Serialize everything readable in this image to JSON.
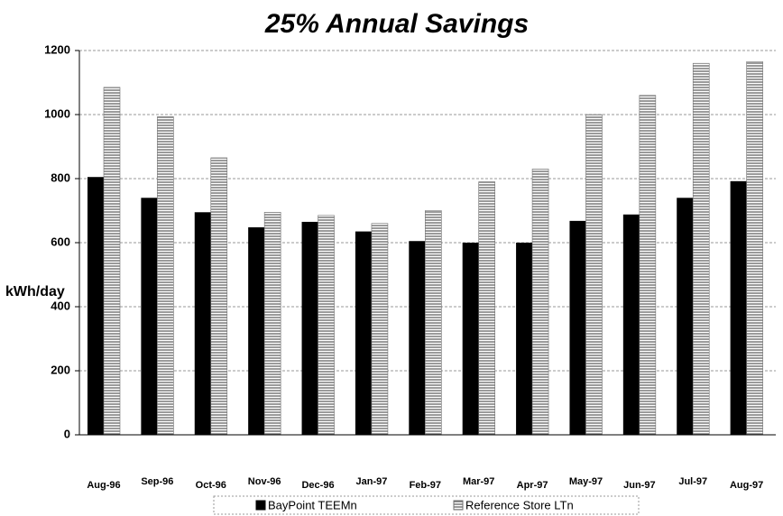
{
  "chart_data": {
    "type": "bar",
    "title": "25% Annual Savings",
    "y_label": "kWh/day",
    "categories": [
      "Aug-96",
      "Sep-96",
      "Oct-96",
      "Nov-96",
      "Dec-96",
      "Jan-97",
      "Feb-97",
      "Mar-97",
      "Apr-97",
      "May-97",
      "Jun-97",
      "Jul-97",
      "Aug-97"
    ],
    "series": [
      {
        "name": "BayPoint TEEMn",
        "color": "#000000",
        "values": [
          805,
          740,
          695,
          648,
          665,
          635,
          605,
          600,
          600,
          668,
          688,
          740,
          792
        ]
      },
      {
        "name": "Reference Store LTn",
        "color": "#707070",
        "values": [
          1085,
          993,
          865,
          695,
          685,
          660,
          700,
          790,
          830,
          1000,
          1060,
          1160,
          1165
        ]
      }
    ],
    "ylim": [
      0,
      1200
    ],
    "yticks": [
      0,
      200,
      400,
      600,
      800,
      1000,
      1200
    ],
    "grid": true,
    "legend": "bottom"
  }
}
